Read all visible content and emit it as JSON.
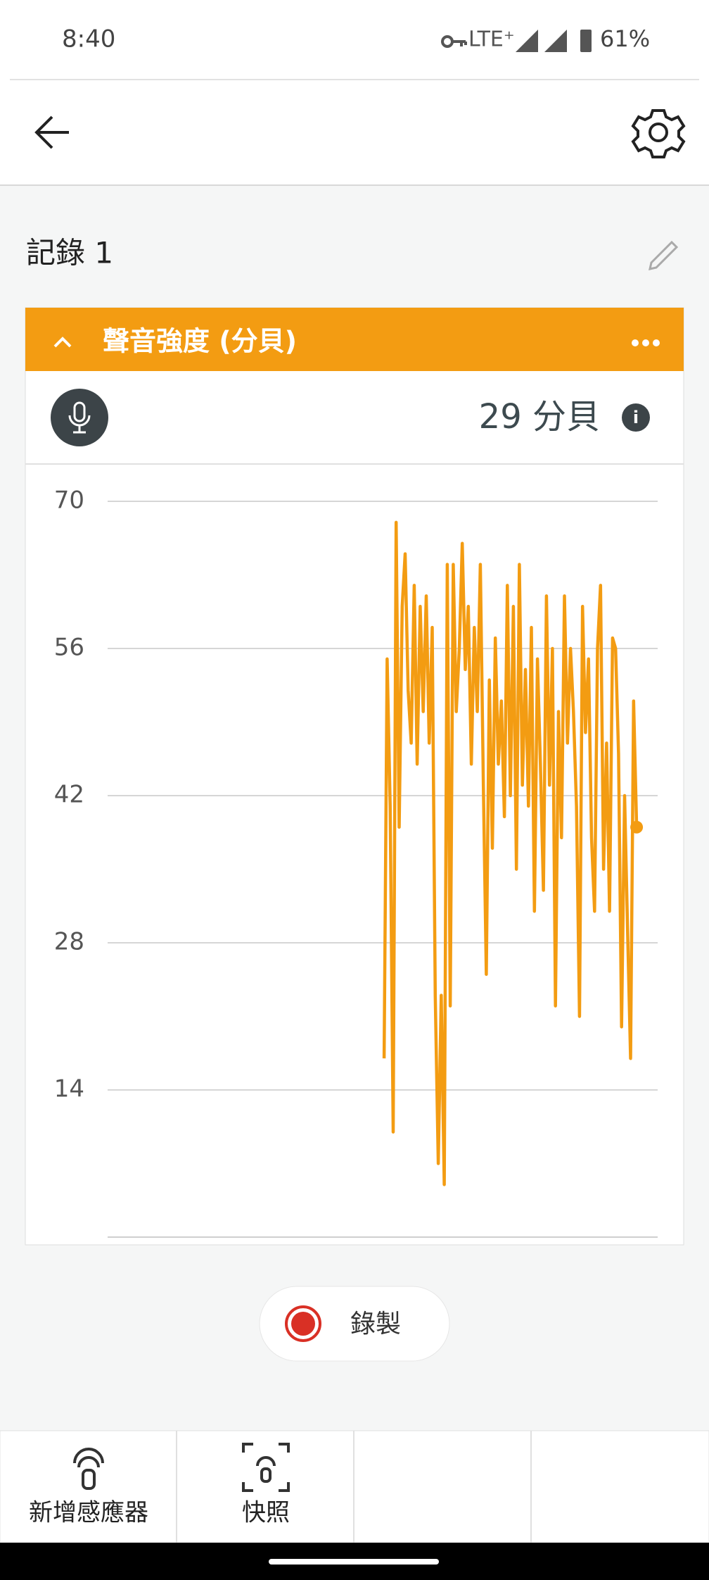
{
  "status_bar": {
    "time": "8:40",
    "network": "LTE⁺",
    "battery": "61%"
  },
  "experiment_title": "記錄 1",
  "card": {
    "reading": "29 分貝"
  },
  "chart_data": {
    "type": "line",
    "title": "聲音強度 (分貝)",
    "series": [
      {
        "color": "#f39c12",
        "values": [
          null,
          null,
          null,
          null,
          null,
          null,
          null,
          null,
          null,
          null,
          null,
          null,
          null,
          null,
          null,
          null,
          null,
          null,
          null,
          null,
          null,
          null,
          null,
          null,
          null,
          null,
          null,
          null,
          null,
          null,
          null,
          null,
          null,
          null,
          null,
          null,
          null,
          null,
          null,
          null,
          null,
          null,
          null,
          null,
          null,
          null,
          null,
          null,
          null,
          null,
          null,
          null,
          null,
          null,
          null,
          null,
          null,
          null,
          null,
          null,
          null,
          null,
          null,
          null,
          null,
          null,
          null,
          null,
          null,
          null,
          null,
          null,
          null,
          null,
          null,
          null,
          null,
          null,
          null,
          null,
          null,
          null,
          null,
          null,
          null,
          null,
          null,
          null,
          null,
          null,
          null,
          null,
          17,
          55,
          41,
          10,
          68,
          39,
          60,
          65,
          52,
          47,
          62,
          45,
          60,
          50,
          61,
          47,
          58,
          23,
          7,
          23,
          5,
          64,
          22,
          64,
          50,
          56,
          66,
          54,
          60,
          45,
          58,
          50,
          64,
          43,
          25,
          53,
          37,
          57,
          45,
          51,
          40,
          62,
          42,
          60,
          35,
          64,
          43,
          54,
          41,
          58,
          31,
          55,
          45,
          33,
          61,
          43,
          56,
          22,
          50,
          38,
          61,
          47,
          56,
          50,
          41,
          21,
          60,
          48,
          55,
          38,
          31,
          56,
          62,
          35,
          47,
          31,
          57,
          56,
          46,
          20,
          42,
          29,
          17,
          51,
          39,
          null,
          null,
          null,
          null,
          null,
          null,
          null
        ]
      }
    ],
    "ylim": [
      0,
      70
    ],
    "yticks": [
      14,
      28,
      42,
      56,
      70
    ],
    "grid": true
  },
  "record_button": "錄製",
  "nav": [
    "新增感應器",
    "快照"
  ]
}
